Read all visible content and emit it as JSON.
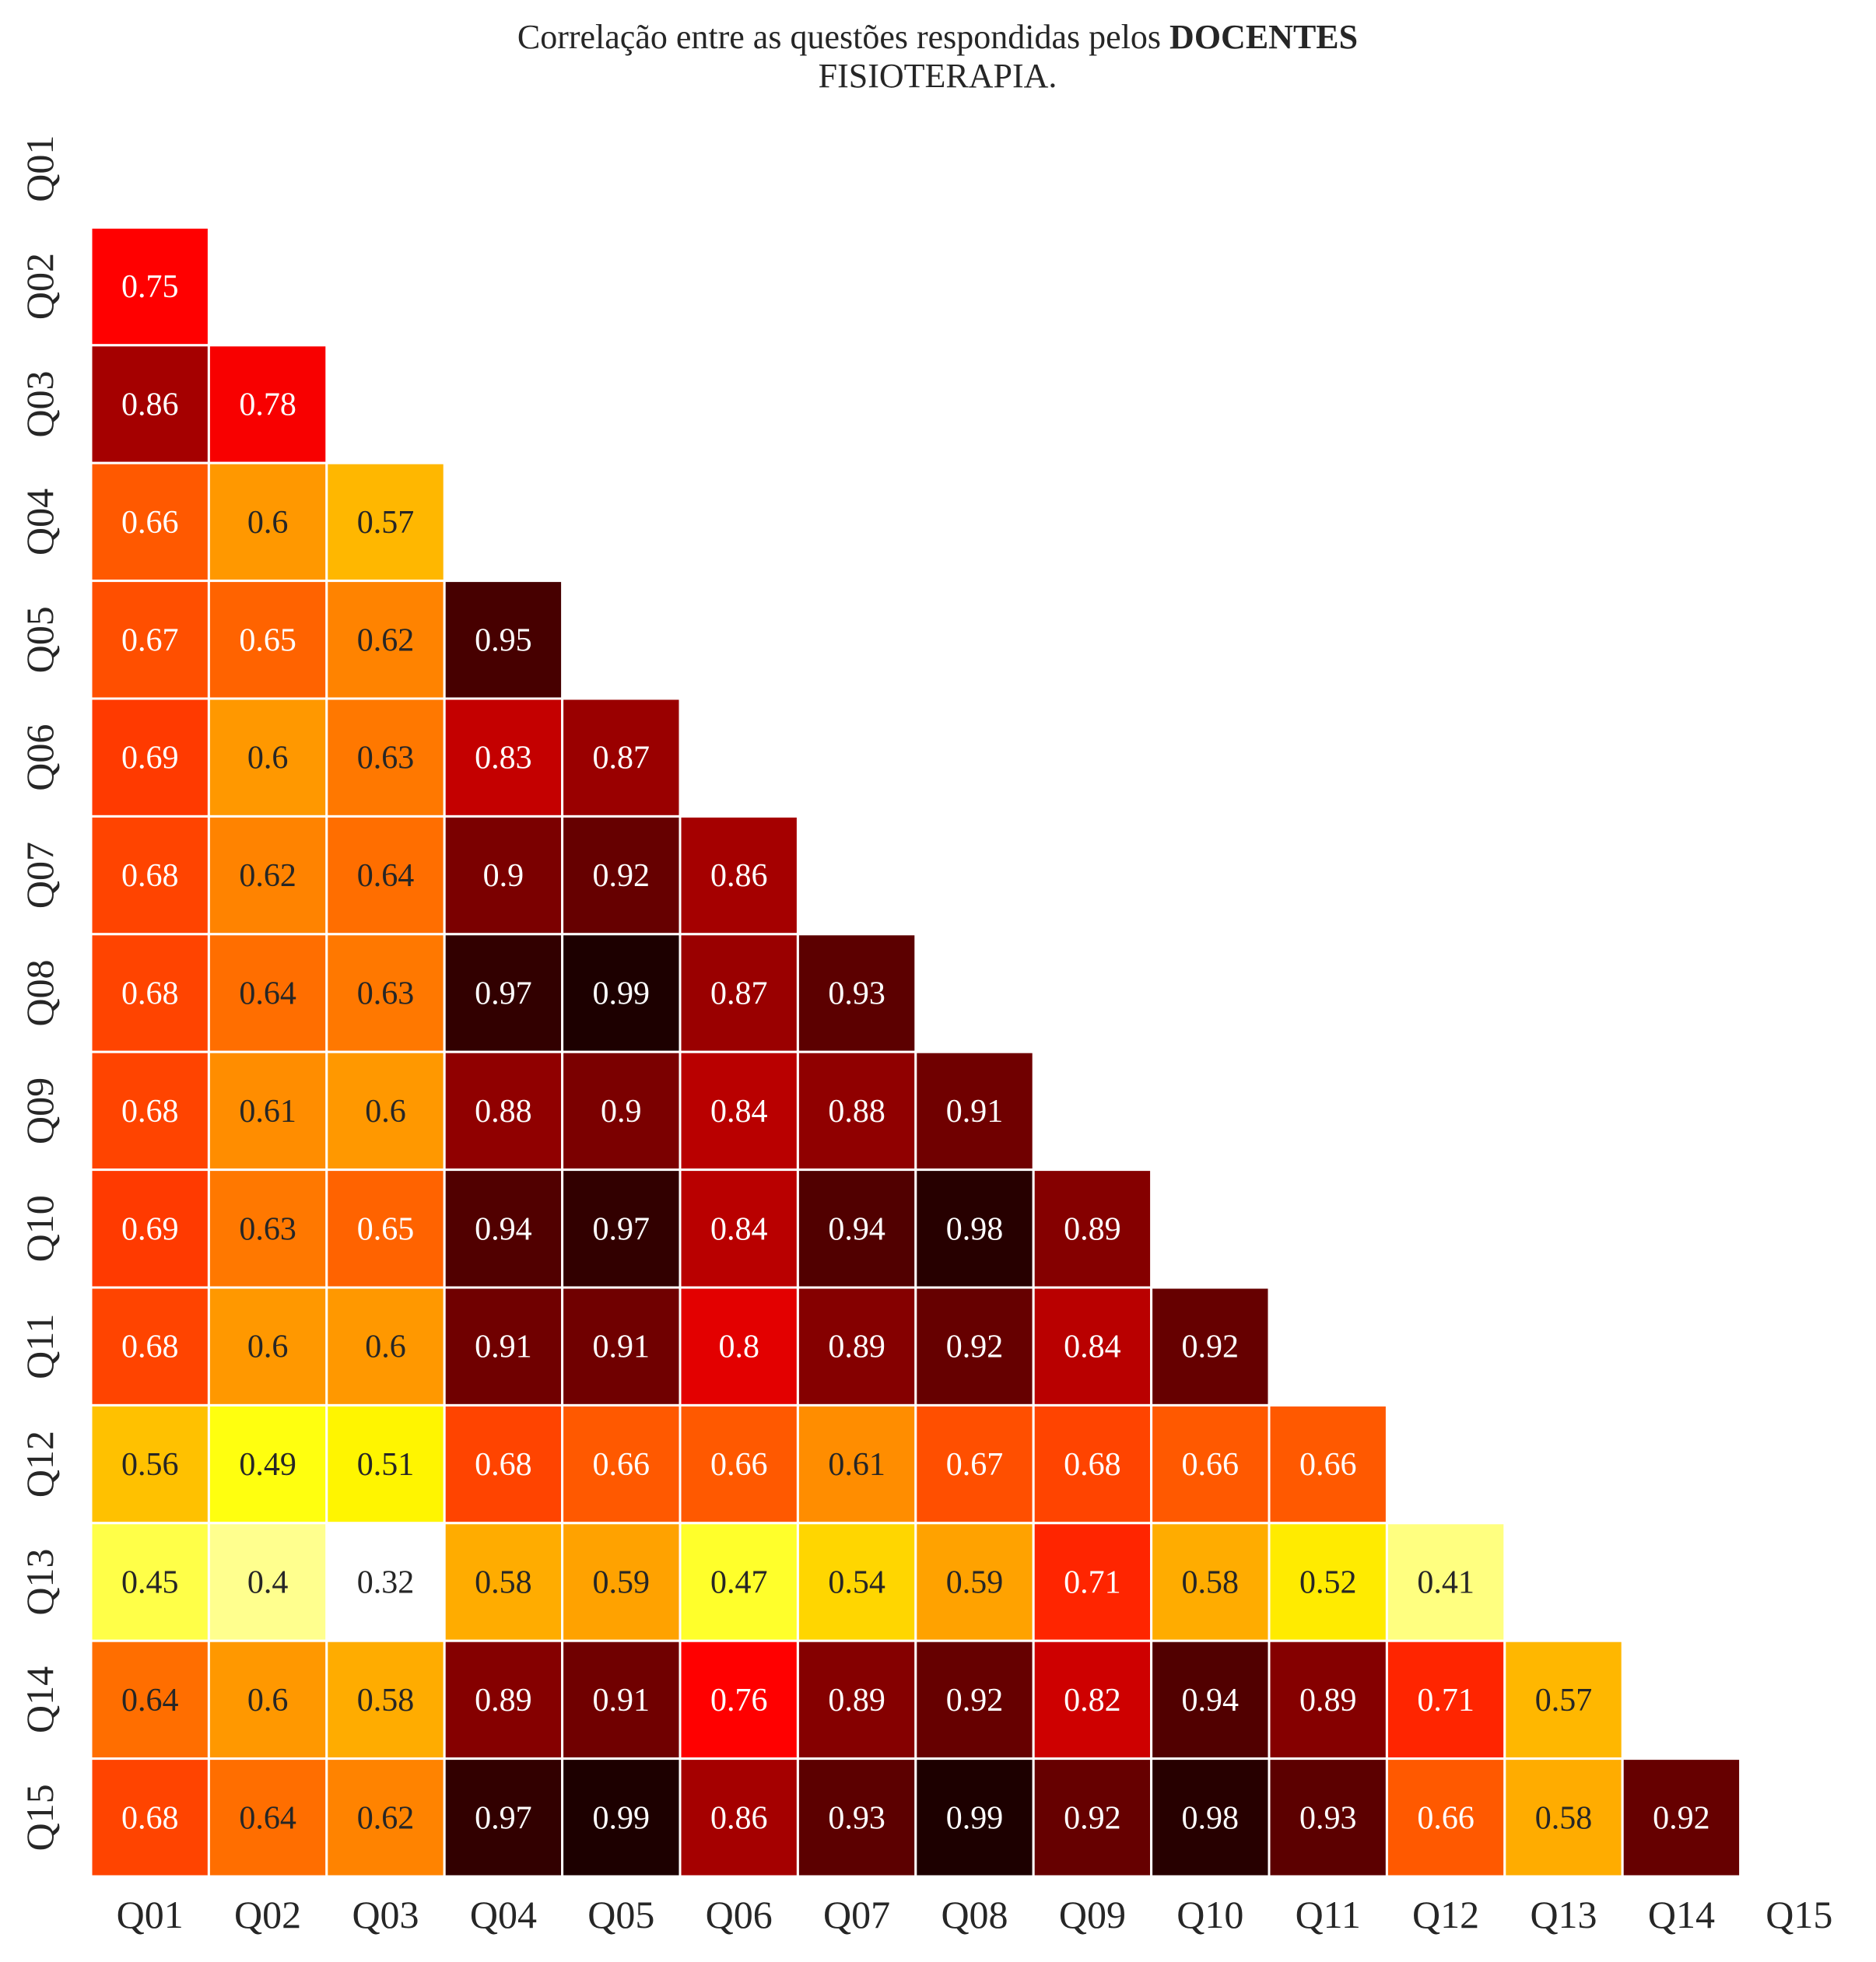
{
  "chart_data": {
    "type": "heatmap",
    "title_prefix": "Correlação entre as questões respondidas pelos ",
    "title_bold": "DOCENTES",
    "title_line2": "FISIOTERAPIA.",
    "row_labels": [
      "Q01",
      "Q02",
      "Q03",
      "Q04",
      "Q05",
      "Q06",
      "Q07",
      "Q08",
      "Q09",
      "Q10",
      "Q11",
      "Q12",
      "Q13",
      "Q14",
      "Q15"
    ],
    "col_labels": [
      "Q01",
      "Q02",
      "Q03",
      "Q04",
      "Q05",
      "Q06",
      "Q07",
      "Q08",
      "Q09",
      "Q10",
      "Q11",
      "Q12",
      "Q13",
      "Q14",
      "Q15"
    ],
    "mask": "lower-triangle (diagonal and upper hidden)",
    "colormap": "hot_r",
    "vmin": 0.32,
    "vmax": 0.99,
    "values": [
      [],
      [
        "0.75"
      ],
      [
        "0.86",
        "0.78"
      ],
      [
        "0.66",
        "0.6",
        "0.57"
      ],
      [
        "0.67",
        "0.65",
        "0.62",
        "0.95"
      ],
      [
        "0.69",
        "0.6",
        "0.63",
        "0.83",
        "0.87"
      ],
      [
        "0.68",
        "0.62",
        "0.64",
        "0.9",
        "0.92",
        "0.86"
      ],
      [
        "0.68",
        "0.64",
        "0.63",
        "0.97",
        "0.99",
        "0.87",
        "0.93"
      ],
      [
        "0.68",
        "0.61",
        "0.6",
        "0.88",
        "0.9",
        "0.84",
        "0.88",
        "0.91"
      ],
      [
        "0.69",
        "0.63",
        "0.65",
        "0.94",
        "0.97",
        "0.84",
        "0.94",
        "0.98",
        "0.89"
      ],
      [
        "0.68",
        "0.6",
        "0.6",
        "0.91",
        "0.91",
        "0.8",
        "0.89",
        "0.92",
        "0.84",
        "0.92"
      ],
      [
        "0.56",
        "0.49",
        "0.51",
        "0.68",
        "0.66",
        "0.66",
        "0.61",
        "0.67",
        "0.68",
        "0.66",
        "0.66"
      ],
      [
        "0.45",
        "0.4",
        "0.32",
        "0.58",
        "0.59",
        "0.47",
        "0.54",
        "0.59",
        "0.71",
        "0.58",
        "0.52",
        "0.41"
      ],
      [
        "0.64",
        "0.6",
        "0.58",
        "0.89",
        "0.91",
        "0.76",
        "0.89",
        "0.92",
        "0.82",
        "0.94",
        "0.89",
        "0.71",
        "0.57"
      ],
      [
        "0.68",
        "0.64",
        "0.62",
        "0.97",
        "0.99",
        "0.86",
        "0.93",
        "0.99",
        "0.92",
        "0.98",
        "0.93",
        "0.66",
        "0.58",
        "0.92"
      ]
    ]
  }
}
